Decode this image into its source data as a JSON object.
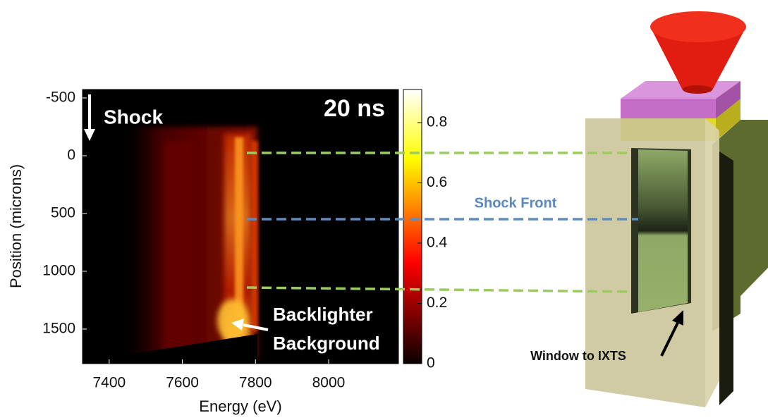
{
  "chart_data": {
    "type": "heatmap",
    "xlabel": "Energy (eV)",
    "ylabel": "Position (microns)",
    "xlim": [
      7327,
      8191
    ],
    "ylim": [
      -573,
      1799
    ],
    "y_reversed": true,
    "xticks": [
      7400,
      7600,
      7800,
      8000
    ],
    "yticks": [
      -500,
      0,
      500,
      1000,
      1500
    ],
    "colormap": "hot",
    "clim": [
      0,
      0.91
    ],
    "cticks": [
      0,
      0.2,
      0.4,
      0.6,
      0.8
    ],
    "annotations": {
      "shock": "Shock",
      "time": "20 ns",
      "backlighter": [
        "Backlighter",
        "Background"
      ],
      "shock_front": "Shock Front",
      "window": "Window to IXTS"
    }
  }
}
